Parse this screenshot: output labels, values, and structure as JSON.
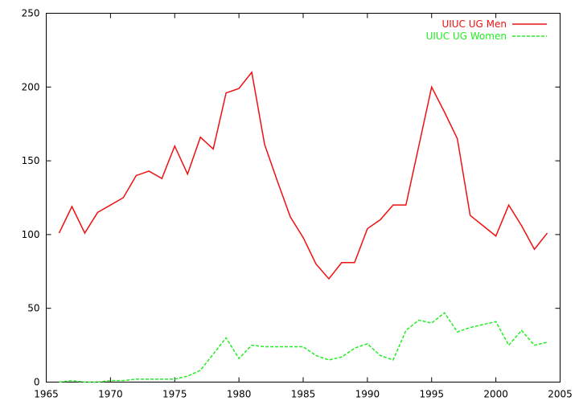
{
  "chart_data": {
    "type": "line",
    "title": "",
    "xlabel": "",
    "ylabel": "",
    "xlim": [
      1965,
      2005
    ],
    "ylim": [
      0,
      250
    ],
    "xticks": [
      1965,
      1970,
      1975,
      1980,
      1985,
      1990,
      1995,
      2000,
      2005
    ],
    "yticks": [
      0,
      50,
      100,
      150,
      200,
      250
    ],
    "grid": false,
    "legend_position": "top-right",
    "series": [
      {
        "name": "UIUC UG Men",
        "color": "#ee1111",
        "style": "solid",
        "x": [
          1966,
          1967,
          1968,
          1969,
          1970,
          1971,
          1972,
          1973,
          1974,
          1975,
          1976,
          1977,
          1978,
          1979,
          1980,
          1981,
          1982,
          1983,
          1984,
          1985,
          1986,
          1987,
          1988,
          1989,
          1990,
          1991,
          1992,
          1993,
          1994,
          1995,
          1996,
          1997,
          1998,
          1999,
          2000,
          2001,
          2002,
          2003,
          2004
        ],
        "y": [
          101,
          119,
          101,
          115,
          120,
          125,
          140,
          143,
          138,
          160,
          141,
          166,
          158,
          196,
          199,
          210,
          161,
          136,
          112,
          98,
          80,
          70,
          81,
          81,
          104,
          110,
          120,
          120,
          160,
          200,
          183,
          165,
          113,
          106,
          99,
          120,
          106,
          90,
          101
        ]
      },
      {
        "name": "UIUC UG Women",
        "color": "#22ee22",
        "style": "dashed",
        "x": [
          1966,
          1967,
          1968,
          1969,
          1970,
          1971,
          1972,
          1973,
          1974,
          1975,
          1976,
          1977,
          1978,
          1979,
          1980,
          1981,
          1982,
          1983,
          1984,
          1985,
          1986,
          1987,
          1988,
          1989,
          1990,
          1991,
          1992,
          1993,
          1994,
          1995,
          1996,
          1997,
          1998,
          1999,
          2000,
          2001,
          2002,
          2003,
          2004
        ],
        "y": [
          0,
          1,
          0,
          0,
          1,
          1,
          2,
          2,
          2,
          2,
          4,
          8,
          19,
          30,
          16,
          25,
          24,
          24,
          24,
          24,
          18,
          15,
          17,
          23,
          26,
          18,
          15,
          35,
          42,
          40,
          47,
          34,
          37,
          39,
          41,
          25,
          35,
          25,
          27
        ]
      }
    ]
  }
}
